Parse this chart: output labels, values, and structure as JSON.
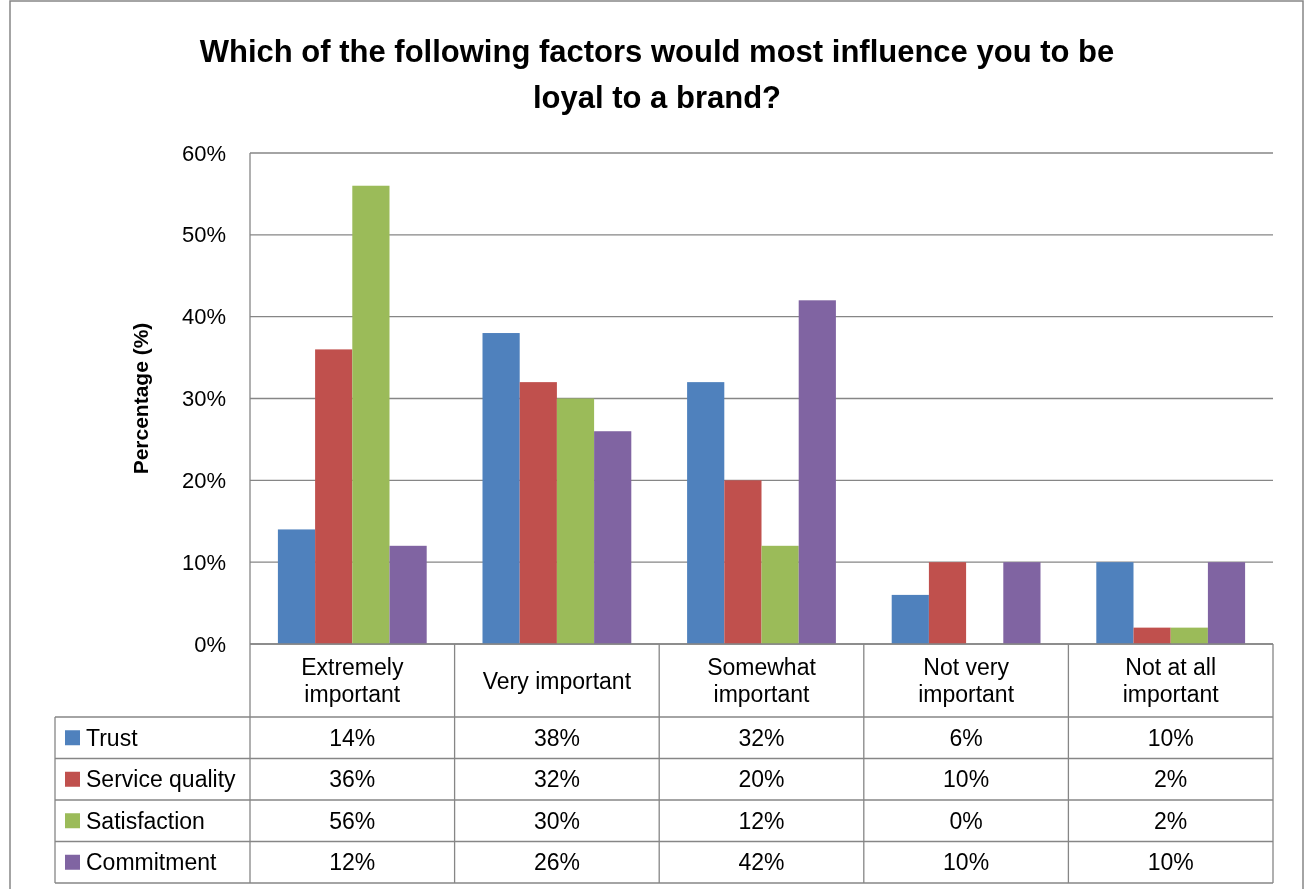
{
  "chart_data": {
    "type": "bar",
    "title": "Which of the following factors would most influence you to be loyal to a brand?",
    "ylabel": "Percentage (%)",
    "categories": [
      "Extremely important",
      "Very important",
      "Somewhat important",
      "Not very important",
      "Not at all important"
    ],
    "series": [
      {
        "name": "Trust",
        "color": "#4f81bd",
        "values": [
          14,
          38,
          32,
          6,
          10
        ],
        "value_labels": [
          "14%",
          "38%",
          "32%",
          "6%",
          "10%"
        ]
      },
      {
        "name": "Service quality",
        "color": "#c0504d",
        "values": [
          36,
          32,
          20,
          10,
          2
        ],
        "value_labels": [
          "36%",
          "32%",
          "20%",
          "10%",
          "2%"
        ]
      },
      {
        "name": "Satisfaction",
        "color": "#9bbb59",
        "values": [
          56,
          30,
          12,
          0,
          2
        ],
        "value_labels": [
          "56%",
          "30%",
          "12%",
          "0%",
          "2%"
        ]
      },
      {
        "name": "Commitment",
        "color": "#8064a2",
        "values": [
          12,
          26,
          42,
          10,
          10
        ],
        "value_labels": [
          "12%",
          "26%",
          "42%",
          "10%",
          "10%"
        ]
      }
    ],
    "ylim": [
      0,
      60
    ],
    "yticks": [
      {
        "value": 0,
        "label": "0%"
      },
      {
        "value": 10,
        "label": "10%"
      },
      {
        "value": 20,
        "label": "20%"
      },
      {
        "value": 30,
        "label": "30%"
      },
      {
        "value": 40,
        "label": "40%"
      },
      {
        "value": 50,
        "label": "50%"
      },
      {
        "value": 60,
        "label": "60%"
      }
    ],
    "grid": "y",
    "legend": "bottom left"
  }
}
